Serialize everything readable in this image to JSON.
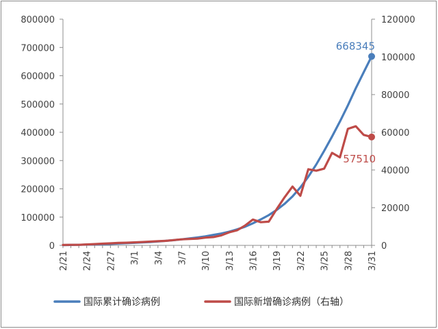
{
  "chart_data": {
    "type": "line",
    "title": "",
    "xlabel": "",
    "ylabel": "",
    "x_tick_labels": [
      "2/21",
      "2/24",
      "2/27",
      "3/1",
      "3/4",
      "3/7",
      "3/10",
      "3/13",
      "3/16",
      "3/19",
      "3/22",
      "3/25",
      "3/28",
      "3/31"
    ],
    "x": [
      "2/21",
      "2/22",
      "2/23",
      "2/24",
      "2/25",
      "2/26",
      "2/27",
      "2/28",
      "2/29",
      "3/1",
      "3/2",
      "3/3",
      "3/4",
      "3/5",
      "3/6",
      "3/7",
      "3/8",
      "3/9",
      "3/10",
      "3/11",
      "3/12",
      "3/13",
      "3/14",
      "3/15",
      "3/16",
      "3/17",
      "3/18",
      "3/19",
      "3/20",
      "3/21",
      "3/22",
      "3/23",
      "3/24",
      "3/25",
      "3/26",
      "3/27",
      "3/28",
      "3/29",
      "3/30",
      "3/31"
    ],
    "left_axis": {
      "ylim": [
        0,
        800000
      ],
      "ticks": [
        0,
        100000,
        200000,
        300000,
        400000,
        500000,
        600000,
        700000,
        800000
      ],
      "tick_labels": [
        "0",
        "100000",
        "200000",
        "300000",
        "400000",
        "500000",
        "600000",
        "700000",
        "800000"
      ]
    },
    "right_axis": {
      "ylim": [
        0,
        120000
      ],
      "ticks": [
        0,
        20000,
        40000,
        60000,
        80000,
        100000,
        120000
      ],
      "tick_labels": [
        "0",
        "20000",
        "40000",
        "60000",
        "80000",
        "100000",
        "120000"
      ]
    },
    "series": [
      {
        "name": "国际累计确诊病例",
        "axis": "left",
        "color": "#4a7ebb",
        "end_label": "668345",
        "values": [
          1000,
          1400,
          1900,
          2600,
          3300,
          4200,
          5200,
          6500,
          7800,
          9000,
          10400,
          12000,
          13900,
          16000,
          18500,
          21300,
          24500,
          28000,
          32000,
          37000,
          42000,
          48500,
          56500,
          66000,
          78000,
          92000,
          107000,
          125000,
          147000,
          173000,
          205000,
          243000,
          286000,
          334000,
          385000,
          438000,
          495000,
          556000,
          612000,
          668345
        ]
      },
      {
        "name": "国际新增确诊病例（右轴）",
        "axis": "right",
        "color": "#be4b48",
        "end_label": "57510",
        "values": [
          200,
          300,
          300,
          500,
          700,
          900,
          1100,
          1300,
          1400,
          1600,
          1800,
          2000,
          2200,
          2400,
          2800,
          3200,
          3400,
          3600,
          4100,
          4400,
          5300,
          6900,
          8000,
          10500,
          13700,
          12300,
          12600,
          19200,
          25500,
          31200,
          26300,
          40400,
          39600,
          40700,
          49100,
          46700,
          61800,
          63200,
          58600,
          57510
        ]
      }
    ],
    "legend": {
      "position": "bottom",
      "items": [
        "国际累计确诊病例",
        "国际新增确诊病例（右轴）"
      ]
    },
    "grid": false
  }
}
